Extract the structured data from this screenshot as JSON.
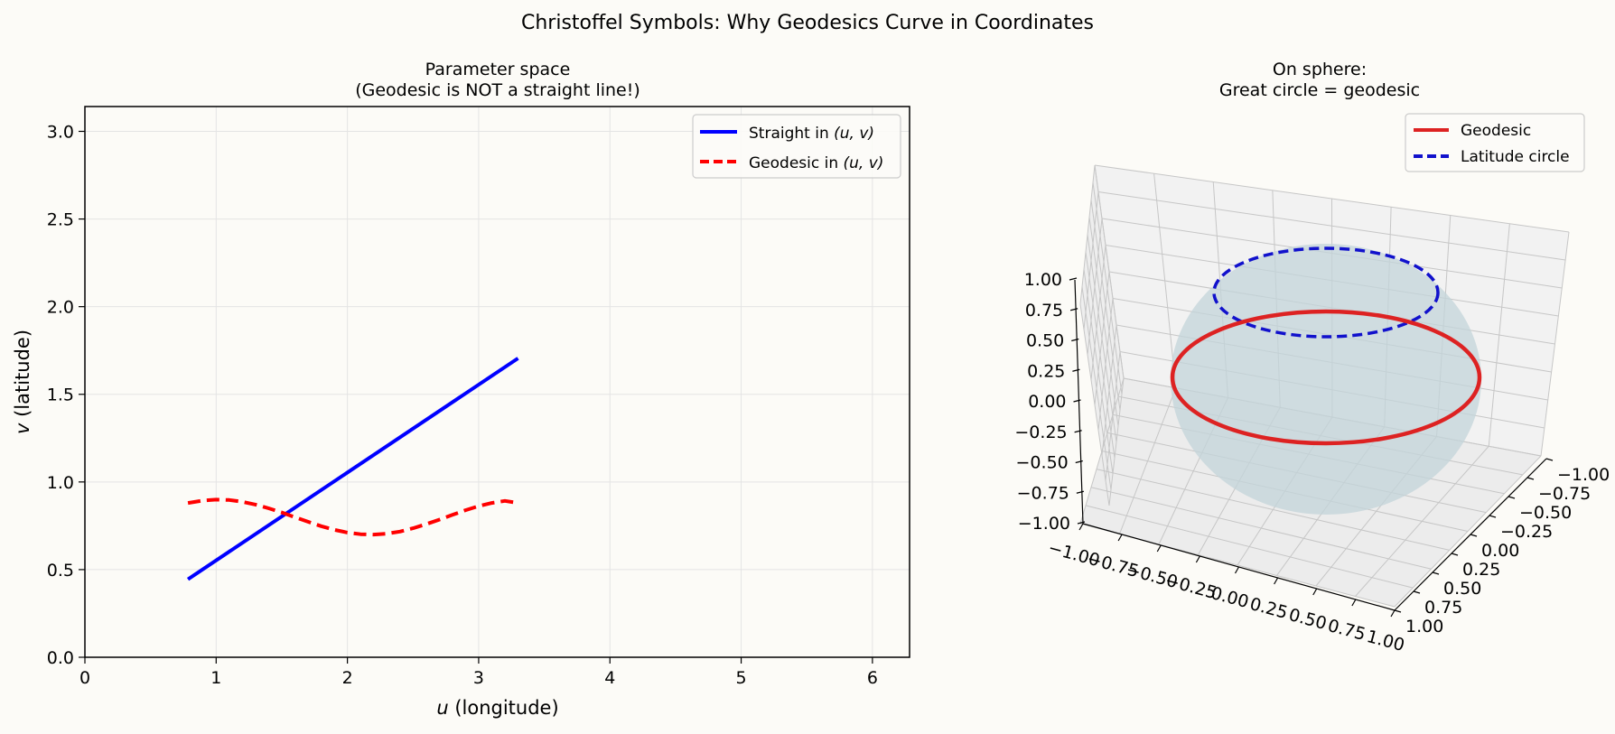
{
  "figure": {
    "suptitle": "Christoffel Symbols: Why Geodesics Curve in Coordinates",
    "background": "#fcfbf7"
  },
  "chart_data": [
    {
      "type": "line",
      "title": "Parameter space\n(Geodesic is NOT a straight line!)",
      "xlabel_var": "u",
      "xlabel_text": " (longitude)",
      "ylabel_var": "v",
      "ylabel_text": " (latitude)",
      "xlim": [
        0,
        6.283
      ],
      "ylim": [
        0,
        3.1416
      ],
      "xticks": [
        0,
        1,
        2,
        3,
        4,
        5,
        6
      ],
      "xtick_labels": [
        "0",
        "1",
        "2",
        "3",
        "4",
        "5",
        "6"
      ],
      "yticks": [
        0,
        0.5,
        1.0,
        1.5,
        2.0,
        2.5,
        3.0
      ],
      "ytick_labels": [
        "0.0",
        "0.5",
        "1.0",
        "1.5",
        "2.0",
        "2.5",
        "3.0"
      ],
      "grid": true,
      "legend_position": "top-right",
      "series": [
        {
          "name_prefix": "Straight in ",
          "name_math": "(u, v)",
          "color": "#0000ff",
          "style": "solid",
          "x": [
            0.785,
            3.3
          ],
          "y": [
            0.445,
            1.705
          ]
        },
        {
          "name_prefix": "Geodesic in ",
          "name_math": "(u, v)",
          "color": "#ff0000",
          "style": "dashed",
          "x": [
            0.785,
            0.9,
            1.0,
            1.1,
            1.2,
            1.3,
            1.4,
            1.5,
            1.6,
            1.7,
            1.8,
            1.9,
            2.0,
            2.1,
            2.2,
            2.3,
            2.4,
            2.5,
            2.6,
            2.7,
            2.8,
            2.9,
            3.0,
            3.1,
            3.2,
            3.3
          ],
          "y": [
            0.88,
            0.894,
            0.899,
            0.897,
            0.887,
            0.871,
            0.85,
            0.826,
            0.799,
            0.773,
            0.748,
            0.727,
            0.711,
            0.702,
            0.7,
            0.705,
            0.717,
            0.736,
            0.759,
            0.785,
            0.812,
            0.839,
            0.862,
            0.88,
            0.892,
            0.88
          ]
        }
      ]
    },
    {
      "type": "line",
      "title": "On sphere:\nGreat circle = geodesic",
      "axes": "3d",
      "xlim": [
        -1,
        1
      ],
      "ylim": [
        -1,
        1
      ],
      "zlim": [
        -1,
        1
      ],
      "tick_labels": [
        "−1.00",
        "−0.75",
        "−0.50",
        "−0.25",
        "0.00",
        "0.25",
        "0.50",
        "0.75",
        "1.00"
      ],
      "legend_position": "top-right",
      "sphere_color": "#c3d4da",
      "series": [
        {
          "name": "Geodesic",
          "color": "#dd2222",
          "style": "solid",
          "curve": "circle",
          "z": 0.0,
          "radius": 1.0
        },
        {
          "name": "Latitude circle",
          "color": "#1111cc",
          "style": "dashed",
          "curve": "circle",
          "z": 0.707,
          "radius": 0.707
        }
      ]
    }
  ]
}
